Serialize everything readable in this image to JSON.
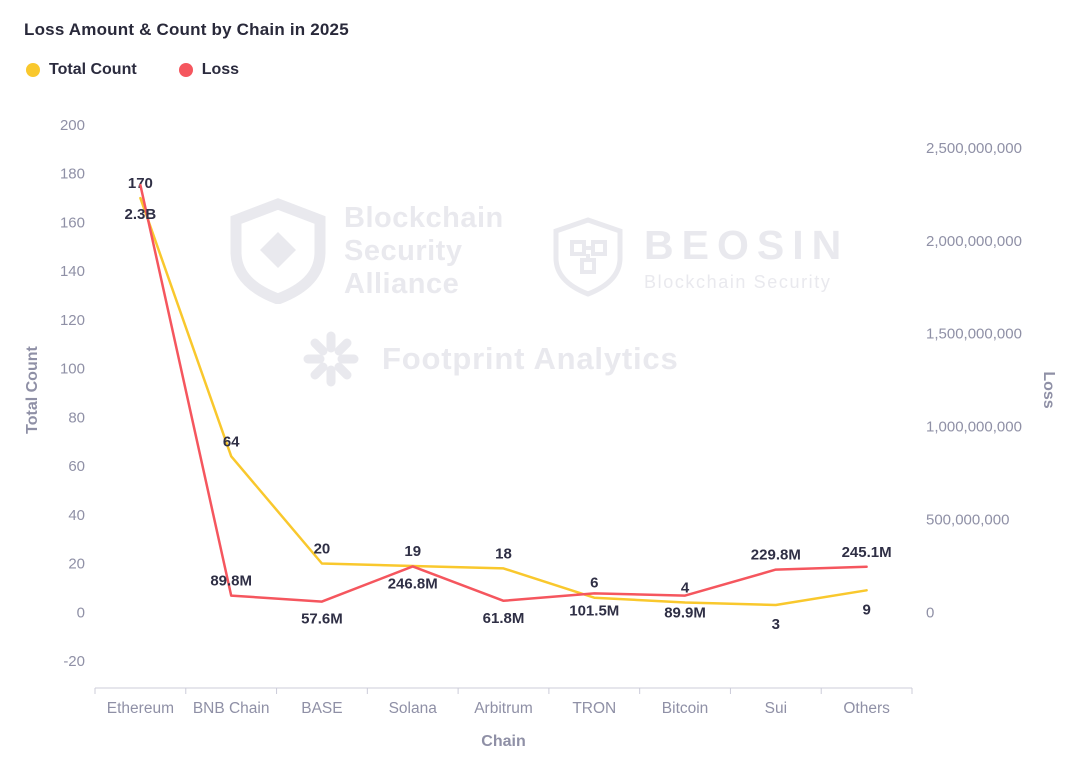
{
  "title": "Loss Amount & Count by Chain in 2025",
  "legend": [
    {
      "label": "Total Count",
      "color": "#f9c82d"
    },
    {
      "label": "Loss",
      "color": "#f5565e"
    }
  ],
  "watermarks": {
    "alliance": {
      "lines": [
        "Blockchain",
        "Security",
        "Alliance"
      ]
    },
    "beosin": {
      "name": "BEOSIN",
      "subtitle": "Blockchain Security"
    },
    "footprint": {
      "name": "Footprint Analytics"
    }
  },
  "chart_data": {
    "type": "line",
    "title": "Loss Amount & Count by Chain in 2025",
    "categories": [
      "Ethereum",
      "BNB Chain",
      "BASE",
      "Solana",
      "Arbitrum",
      "TRON",
      "Bitcoin",
      "Sui",
      "Others"
    ],
    "xlabel": "Chain",
    "grid": false,
    "legend_position": "top-left",
    "series": [
      {
        "name": "Total Count",
        "axis": "left",
        "color": "#f9c82d",
        "values": [
          170,
          64,
          20,
          19,
          18,
          6,
          4,
          3,
          9
        ],
        "labels": [
          "170",
          "64",
          "20",
          "19",
          "18",
          "6",
          "4",
          "3",
          "9"
        ]
      },
      {
        "name": "Loss",
        "axis": "right",
        "color": "#f5565e",
        "values": [
          2300000000,
          89800000,
          57600000,
          246800000,
          61800000,
          101500000,
          89900000,
          229800000,
          245100000
        ],
        "labels": [
          "2.3B",
          "89.8M",
          "57.6M",
          "246.8M",
          "61.8M",
          "101.5M",
          "89.9M",
          "229.8M",
          "245.1M"
        ]
      }
    ],
    "left_axis": {
      "label": "Total Count",
      "min": -20,
      "max": 200,
      "tick_step": 20,
      "ticks": [
        200,
        180,
        160,
        140,
        120,
        100,
        80,
        60,
        40,
        20,
        0,
        -20
      ]
    },
    "right_axis": {
      "label": "Loss",
      "min": 0,
      "max": 2500000000,
      "ticks": [
        "2,500,000,000",
        "2,000,000,000",
        "1,500,000,000",
        "1,000,000,000",
        "500,000,000",
        "0"
      ]
    }
  }
}
